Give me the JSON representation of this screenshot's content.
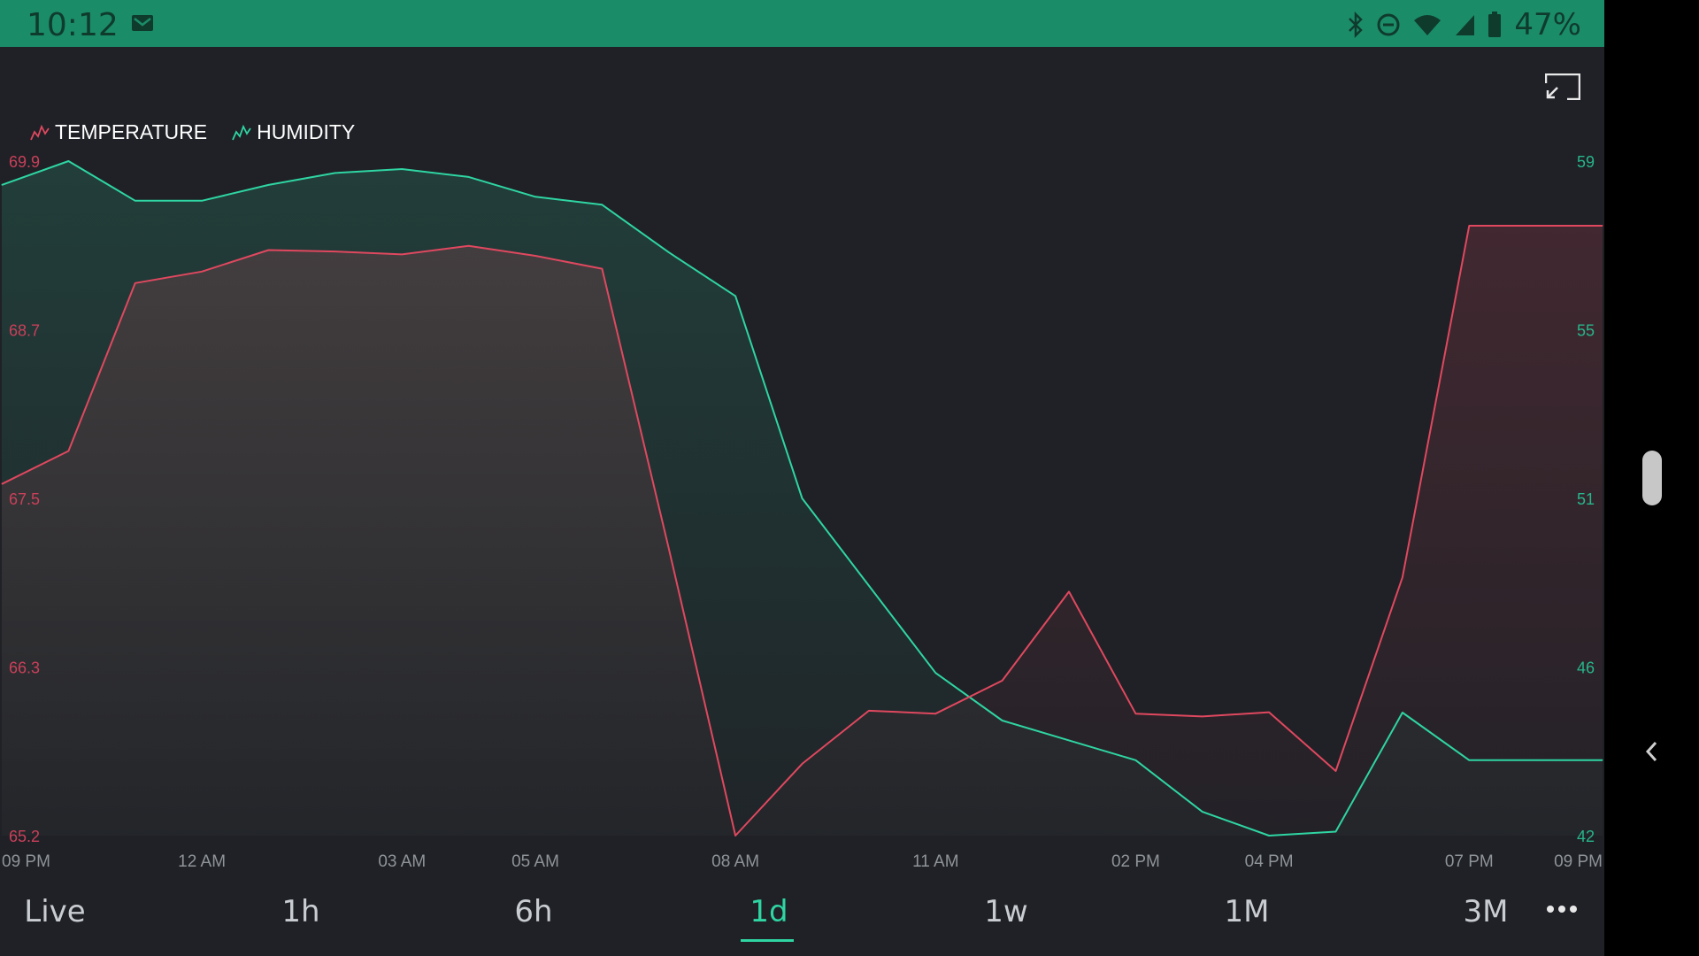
{
  "status_bar": {
    "time": "10:12",
    "battery": "47%"
  },
  "legend": {
    "temperature": "TEMPERATURE",
    "humidity": "HUMIDITY"
  },
  "colors": {
    "temperature": "#e0485f",
    "humidity": "#2fd5a3",
    "status_bar": "#1b8c68",
    "background": "#1f2126"
  },
  "tabs": [
    "Live",
    "1h",
    "6h",
    "1d",
    "1w",
    "1M",
    "3M"
  ],
  "active_tab": "1d",
  "chart_data": {
    "type": "area",
    "x": [
      "09 PM",
      "10 PM",
      "11 PM",
      "12 AM",
      "01 AM",
      "02 AM",
      "03 AM",
      "04 AM",
      "05 AM",
      "06 AM",
      "07 AM",
      "08 AM",
      "09 AM",
      "10 AM",
      "11 AM",
      "12 PM",
      "01 PM",
      "02 PM",
      "03 PM",
      "04 PM",
      "05 PM",
      "06 PM",
      "07 PM",
      "08 PM",
      "09 PM"
    ],
    "x_tick_labels": [
      "09 PM",
      "12 AM",
      "03 AM",
      "05 AM",
      "08 AM",
      "11 AM",
      "02 PM",
      "04 PM",
      "07 PM",
      "09 PM"
    ],
    "series": [
      {
        "name": "TEMPERATURE",
        "axis": "left",
        "values": [
          67.65,
          67.88,
          69.05,
          69.13,
          69.28,
          69.27,
          69.25,
          69.31,
          69.24,
          69.15,
          67.2,
          65.2,
          65.7,
          66.07,
          66.05,
          66.28,
          66.9,
          66.05,
          66.03,
          66.06,
          65.65,
          67.0,
          69.45,
          69.45,
          69.45
        ]
      },
      {
        "name": "HUMIDITY",
        "axis": "right",
        "values": [
          58.4,
          59.0,
          58.0,
          58.0,
          58.4,
          58.7,
          58.8,
          58.6,
          58.1,
          57.9,
          56.7,
          55.6,
          50.5,
          48.3,
          46.1,
          44.9,
          44.4,
          43.9,
          42.6,
          42.0,
          42.1,
          45.1,
          43.9,
          43.9,
          43.9
        ]
      }
    ],
    "y_left": {
      "ticks": [
        "69.9",
        "68.7",
        "67.5",
        "66.3",
        "65.2"
      ],
      "range": [
        65.2,
        69.9
      ]
    },
    "y_right": {
      "ticks": [
        "59",
        "55",
        "51",
        "46",
        "42"
      ],
      "range": [
        42,
        59
      ]
    },
    "legend_position": "top-left",
    "grid": false
  }
}
